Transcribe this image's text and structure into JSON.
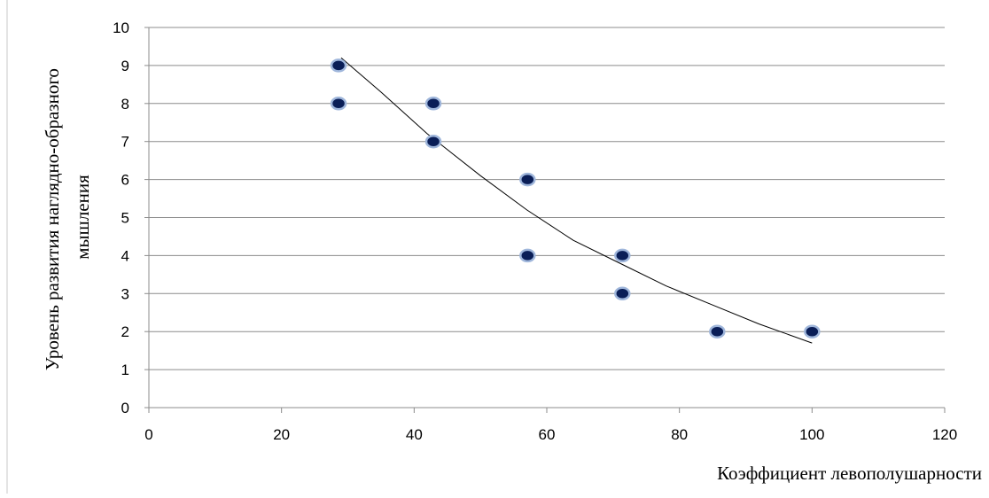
{
  "chart_data": {
    "type": "scatter",
    "title": "",
    "xlabel": "Коэффициент левополушарности",
    "ylabel_lines": [
      "Уровень развития наглядно-образного",
      "мышления"
    ],
    "xlim": [
      0,
      120
    ],
    "ylim": [
      0,
      10
    ],
    "x_ticks": [
      0,
      20,
      40,
      60,
      80,
      100,
      120
    ],
    "y_ticks": [
      0,
      1,
      2,
      3,
      4,
      5,
      6,
      7,
      8,
      9,
      10
    ],
    "grid": "horizontal",
    "legend": "none",
    "series": [
      {
        "points": [
          {
            "x": 28.6,
            "y": 9
          },
          {
            "x": 28.6,
            "y": 8
          },
          {
            "x": 42.9,
            "y": 8
          },
          {
            "x": 42.9,
            "y": 7
          },
          {
            "x": 57.1,
            "y": 6
          },
          {
            "x": 57.1,
            "y": 4
          },
          {
            "x": 71.4,
            "y": 4
          },
          {
            "x": 71.4,
            "y": 3
          },
          {
            "x": 85.7,
            "y": 2
          },
          {
            "x": 100,
            "y": 2
          }
        ],
        "marker_color": "#0a1e57",
        "marker_edge_color": "#9fb6db"
      }
    ],
    "trendline": {
      "type": "power",
      "color": "#000000",
      "points": [
        {
          "x": 29,
          "y": 9.2
        },
        {
          "x": 35,
          "y": 8.3
        },
        {
          "x": 42,
          "y": 7.2
        },
        {
          "x": 50,
          "y": 6.1
        },
        {
          "x": 57,
          "y": 5.2
        },
        {
          "x": 64,
          "y": 4.4
        },
        {
          "x": 71,
          "y": 3.8
        },
        {
          "x": 78,
          "y": 3.2
        },
        {
          "x": 85,
          "y": 2.7
        },
        {
          "x": 92,
          "y": 2.2
        },
        {
          "x": 100,
          "y": 1.7
        }
      ]
    }
  }
}
